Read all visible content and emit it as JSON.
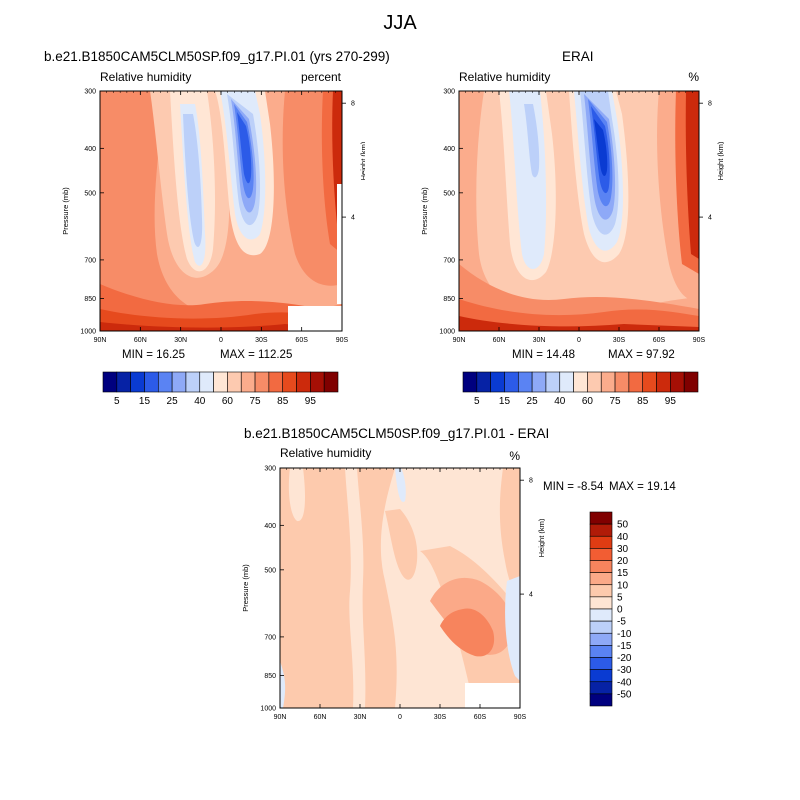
{
  "page": {
    "title": "JJA",
    "colors": {
      "background": "#ffffff",
      "axis": "#000000",
      "missing": "#ffffff"
    }
  },
  "chart_data": [
    {
      "type": "heatmap",
      "title": "b.e21.B1850CAM5CLM50SP.f09_g17.PI.01 (yrs 270-299)",
      "subtitle_left": "Relative humidity",
      "subtitle_right": "percent",
      "xlabel": "",
      "ylabel": "Pressure (mb)",
      "right_axis_label": "Height (km)",
      "x_ticks": [
        "90N",
        "60N",
        "30N",
        "0",
        "30S",
        "60S",
        "90S"
      ],
      "y_ticks": [
        "300",
        "400",
        "500",
        "700",
        "850",
        "1000"
      ],
      "y_tick_values": [
        300,
        400,
        500,
        700,
        850,
        1000
      ],
      "right_ticks": [
        "8",
        "4"
      ],
      "right_tick_values": [
        8,
        4
      ],
      "xlim": [
        90,
        -90
      ],
      "ylim": [
        300,
        1000
      ],
      "min_label": "MIN =  16.25",
      "max_label": "MAX = 112.25",
      "min": 16.25,
      "max": 112.25,
      "colorbar": {
        "tick_labels": [
          "5",
          "15",
          "25",
          "40",
          "60",
          "75",
          "85",
          "95"
        ],
        "colors": [
          "#00007f",
          "#0622a5",
          "#0a3bd2",
          "#2c5be8",
          "#5a83f3",
          "#8ea9f7",
          "#bcd0f9",
          "#dfeafb",
          "#ffe6d5",
          "#fdcab0",
          "#fbac8c",
          "#f78c67",
          "#f26a41",
          "#e64a1d",
          "#cc2a0c",
          "#a50f05",
          "#800000"
        ]
      }
    },
    {
      "type": "heatmap",
      "title": "ERAI",
      "subtitle_left": "Relative humidity",
      "subtitle_right": "%",
      "xlabel": "",
      "ylabel": "Pressure (mb)",
      "right_axis_label": "Height (km)",
      "x_ticks": [
        "90N",
        "60N",
        "30N",
        "0",
        "30S",
        "60S",
        "90S"
      ],
      "y_ticks": [
        "300",
        "400",
        "500",
        "700",
        "850",
        "1000"
      ],
      "y_tick_values": [
        300,
        400,
        500,
        700,
        850,
        1000
      ],
      "right_ticks": [
        "8",
        "4"
      ],
      "right_tick_values": [
        8,
        4
      ],
      "xlim": [
        90,
        -90
      ],
      "ylim": [
        300,
        1000
      ],
      "min_label": "MIN =  14.48",
      "max_label": "MAX =  97.92",
      "min": 14.48,
      "max": 97.92,
      "colorbar": {
        "tick_labels": [
          "5",
          "15",
          "25",
          "40",
          "60",
          "75",
          "85",
          "95"
        ],
        "colors": [
          "#00007f",
          "#0622a5",
          "#0a3bd2",
          "#2c5be8",
          "#5a83f3",
          "#8ea9f7",
          "#bcd0f9",
          "#dfeafb",
          "#ffe6d5",
          "#fdcab0",
          "#fbac8c",
          "#f78c67",
          "#f26a41",
          "#e64a1d",
          "#cc2a0c",
          "#a50f05",
          "#800000"
        ]
      }
    },
    {
      "type": "heatmap",
      "title": "b.e21.B1850CAM5CLM50SP.f09_g17.PI.01 - ERAI",
      "subtitle_left": "Relative humidity",
      "subtitle_right": "%",
      "xlabel": "",
      "ylabel": "Pressure (mb)",
      "right_axis_label": "Height (km)",
      "x_ticks": [
        "90N",
        "60N",
        "30N",
        "0",
        "30S",
        "60S",
        "90S"
      ],
      "y_ticks": [
        "300",
        "400",
        "500",
        "700",
        "850",
        "1000"
      ],
      "y_tick_values": [
        300,
        400,
        500,
        700,
        850,
        1000
      ],
      "right_ticks": [
        "8",
        "4"
      ],
      "right_tick_values": [
        8,
        4
      ],
      "xlim": [
        90,
        -90
      ],
      "ylim": [
        300,
        1000
      ],
      "min_label": "MIN =  -8.54",
      "max_label": "MAX =  19.14",
      "min": -8.54,
      "max": 19.14,
      "colorbar": {
        "tick_labels": [
          "50",
          "40",
          "30",
          "20",
          "15",
          "10",
          "5",
          "0",
          "-5",
          "-10",
          "-15",
          "-20",
          "-30",
          "-40",
          "-50"
        ],
        "colors": [
          "#800000",
          "#b01b08",
          "#e03c13",
          "#f25d33",
          "#f7845d",
          "#fba988",
          "#fdcaad",
          "#fee5d4",
          "#dfeafb",
          "#bcd0f9",
          "#8ea9f7",
          "#5a83f3",
          "#2c5be8",
          "#0a3bd2",
          "#0622a5",
          "#00007f"
        ]
      }
    }
  ]
}
